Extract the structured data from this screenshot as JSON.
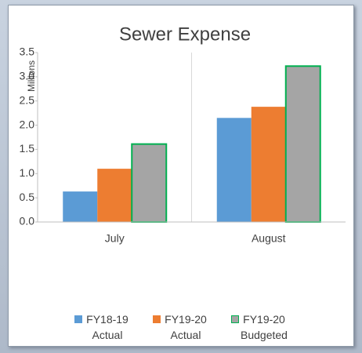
{
  "chart_data": {
    "type": "bar",
    "title": "Sewer Expense",
    "y_label": "Millions",
    "categories": [
      "July",
      "August"
    ],
    "series": [
      {
        "name": "FY18-19 Actual",
        "color": "#5b9bd5",
        "values": [
          0.63,
          2.15
        ]
      },
      {
        "name": "FY19-20 Actual",
        "color": "#ed7d31",
        "values": [
          1.1,
          2.38
        ]
      },
      {
        "name": "FY19-20 Budgeted",
        "color": "#a5a5a5",
        "edgecolor": "#00b050",
        "values": [
          1.61,
          3.22
        ]
      }
    ],
    "ylim": [
      0,
      3.5
    ],
    "yticks": [
      {
        "value": 0,
        "label": "0.0"
      },
      0.5,
      {
        "value": 1,
        "label": "1.0"
      },
      1.5,
      {
        "value": 2,
        "label": "2.0"
      },
      2.5,
      {
        "value": 3,
        "label": "3.0"
      },
      3.5
    ],
    "grid": false,
    "legend": "bottom"
  }
}
